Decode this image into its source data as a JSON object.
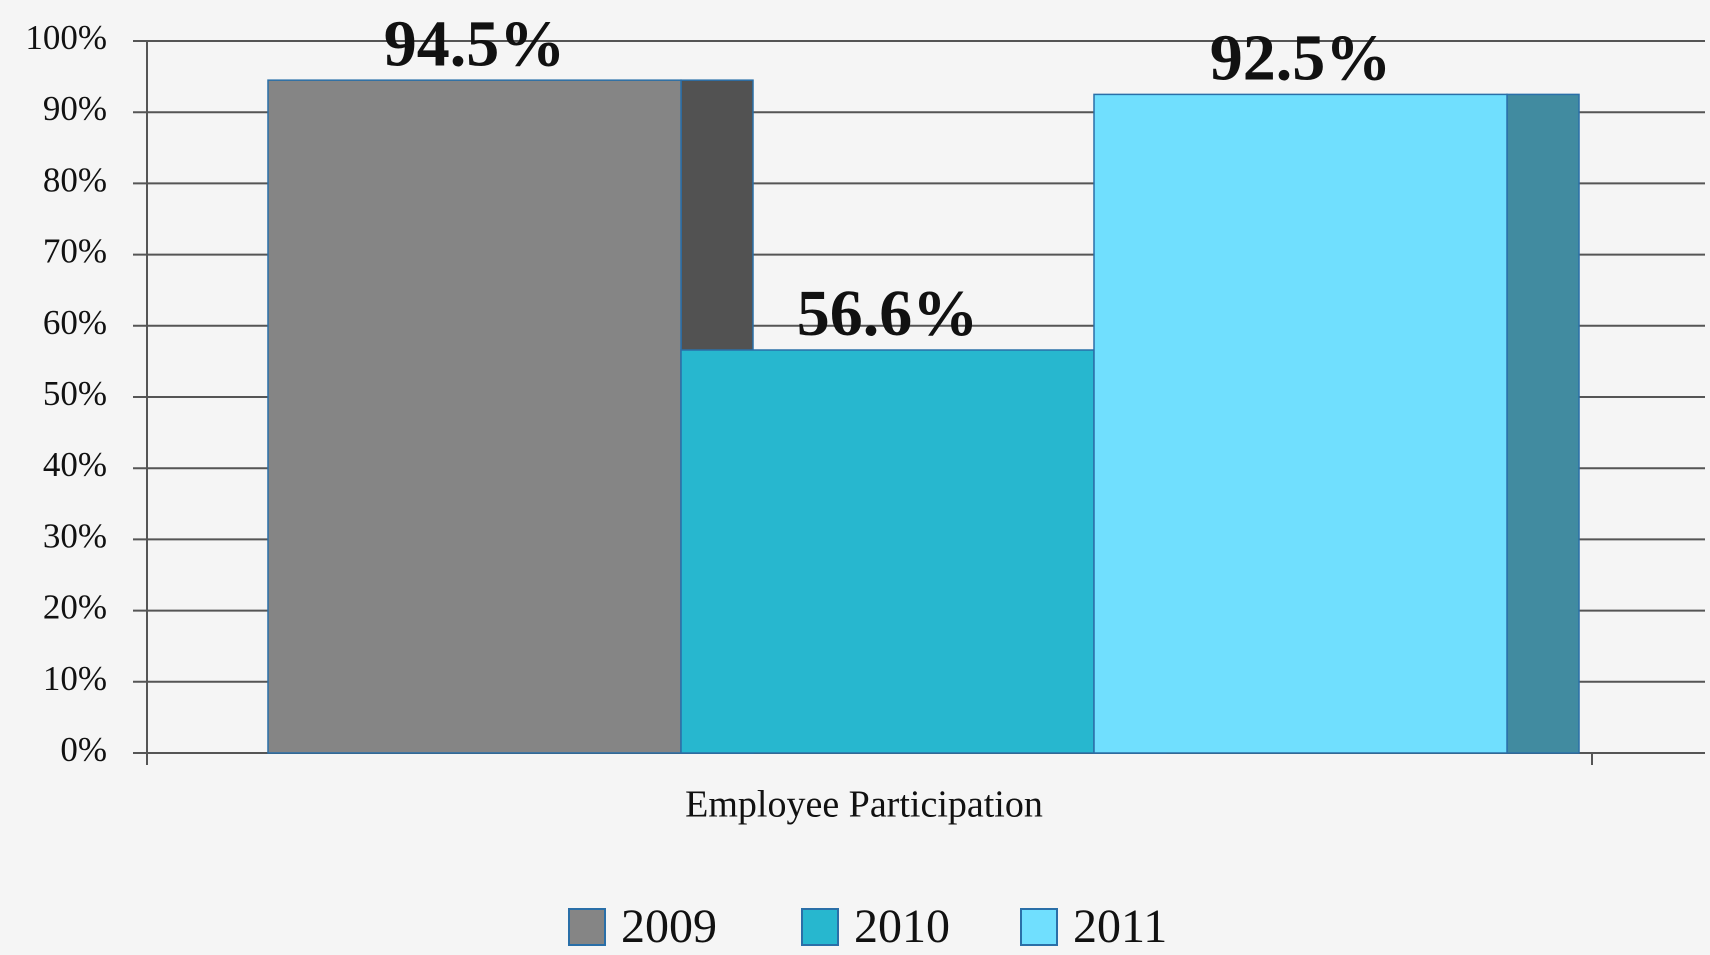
{
  "chart_data": {
    "type": "bar",
    "categories": [
      "Employee Participation"
    ],
    "series": [
      {
        "name": "2009",
        "color": "#858585",
        "side_color": "#525252",
        "values": [
          94.5
        ],
        "value_labels": [
          "94.5%"
        ]
      },
      {
        "name": "2010",
        "color": "#27b7cf",
        "side_color": "#1d8a9c",
        "values": [
          56.6
        ],
        "value_labels": [
          "56.6%"
        ]
      },
      {
        "name": "2011",
        "color": "#70dffe",
        "side_color": "#418ba0",
        "values": [
          92.5
        ],
        "value_labels": [
          "92.5%"
        ]
      }
    ],
    "ylim": [
      0,
      100
    ],
    "yticks": [
      {
        "value": 0,
        "label": "0%"
      },
      {
        "value": 10,
        "label": "10%"
      },
      {
        "value": 20,
        "label": "20%"
      },
      {
        "value": 30,
        "label": "30%"
      },
      {
        "value": 40,
        "label": "40%"
      },
      {
        "value": 50,
        "label": "50%"
      },
      {
        "value": 60,
        "label": "60%"
      },
      {
        "value": 70,
        "label": "70%"
      },
      {
        "value": 80,
        "label": "80%"
      },
      {
        "value": 90,
        "label": "90%"
      },
      {
        "value": 100,
        "label": "100%"
      }
    ],
    "grid": true,
    "legend": "bottom"
  }
}
